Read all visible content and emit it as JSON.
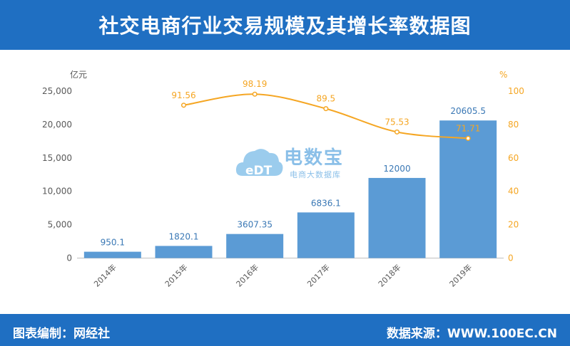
{
  "header": {
    "title": "社交电商行业交易规模及其增长率数据图"
  },
  "footer": {
    "left_text": "图表编制：网经社",
    "right_text": "数据来源：WWW.100EC.CN"
  },
  "watermark": {
    "title": "电数宝",
    "subtitle": "电商大数据库",
    "logo_text": "eDT"
  },
  "colors": {
    "header_bg": "#1f6fc2",
    "bar": "#5b9bd5",
    "line": "#f5a623",
    "bar_label": "#3a78b5",
    "axis_text": "#595959"
  },
  "chart_data": {
    "type": "bar",
    "categories": [
      "2014年",
      "2015年",
      "2016年",
      "2017年",
      "2018年",
      "2019年"
    ],
    "y_left_label": "亿元",
    "y_right_label": "%",
    "ylim_left": [
      0,
      25000
    ],
    "ylim_right": [
      0,
      100
    ],
    "y_left_ticks": [
      "25,000",
      "20,000",
      "15,000",
      "10,000",
      "5,000",
      "0"
    ],
    "y_right_ticks": [
      "100",
      "80",
      "60",
      "40",
      "20",
      "0"
    ],
    "grid": false,
    "series": [
      {
        "type": "bar",
        "axis": "left",
        "values": [
          950.1,
          1820.1,
          3607.35,
          6836.1,
          12000,
          20605.5
        ],
        "labels": [
          "950.1",
          "1820.1",
          "3607.35",
          "6836.1",
          "12000",
          "20605.5"
        ]
      },
      {
        "type": "line",
        "axis": "right",
        "values": [
          null,
          91.56,
          98.19,
          89.5,
          75.53,
          71.71
        ],
        "labels": [
          "",
          "91.56",
          "98.19",
          "89.5",
          "75.53",
          "71.71"
        ]
      }
    ]
  }
}
